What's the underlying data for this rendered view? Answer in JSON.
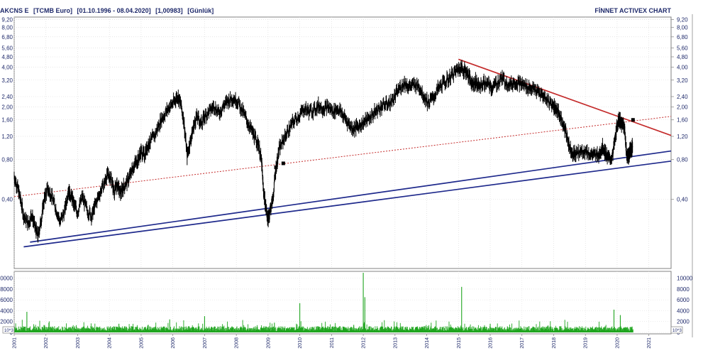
{
  "header": {
    "symbol": "AKCNS E",
    "currency": "[TCMB Euro]",
    "date_range": "[01.10.1996 - 08.04.2020]",
    "last_value": "[1,00983]",
    "period": "[Günlük]",
    "brand": "FİNNET ACTIVEX CHART"
  },
  "chart_data": [
    {
      "type": "line",
      "scale": "log",
      "x_ticks": [
        "2001",
        "2002",
        "2003",
        "2004",
        "2005",
        "2006",
        "2007",
        "2008",
        "2009",
        "2010",
        "2011",
        "2012",
        "2013",
        "2014",
        "2015",
        "2016",
        "2017",
        "2018",
        "2019",
        "2020",
        "2021"
      ],
      "y_ticks": [
        "9,20",
        "8,00",
        "6,80",
        "5,60",
        "4,80",
        "4,00",
        "3,20",
        "2,40",
        "2,00",
        "1,60",
        "1,20",
        "0,80",
        "0,40"
      ],
      "y_tick_values": [
        9.2,
        8.0,
        6.8,
        5.6,
        4.8,
        4.0,
        3.2,
        2.4,
        2.0,
        1.6,
        1.2,
        0.8,
        0.4
      ],
      "ylim": [
        0.12,
        9.6
      ],
      "xlim": [
        2001.0,
        2021.7
      ],
      "series": [
        {
          "points": [
            [
              2001.0,
              0.6
            ],
            [
              2001.1,
              0.5
            ],
            [
              2001.2,
              0.4
            ],
            [
              2001.3,
              0.3
            ],
            [
              2001.45,
              0.26
            ],
            [
              2001.55,
              0.31
            ],
            [
              2001.65,
              0.25
            ],
            [
              2001.75,
              0.21
            ],
            [
              2001.85,
              0.28
            ],
            [
              2001.95,
              0.4
            ],
            [
              2002.05,
              0.48
            ],
            [
              2002.15,
              0.44
            ],
            [
              2002.3,
              0.35
            ],
            [
              2002.45,
              0.27
            ],
            [
              2002.6,
              0.33
            ],
            [
              2002.7,
              0.47
            ],
            [
              2002.8,
              0.42
            ],
            [
              2002.9,
              0.36
            ],
            [
              2003.0,
              0.32
            ],
            [
              2003.15,
              0.42
            ],
            [
              2003.3,
              0.33
            ],
            [
              2003.45,
              0.3
            ],
            [
              2003.55,
              0.36
            ],
            [
              2003.7,
              0.45
            ],
            [
              2003.85,
              0.54
            ],
            [
              2003.95,
              0.62
            ],
            [
              2004.05,
              0.58
            ],
            [
              2004.15,
              0.46
            ],
            [
              2004.25,
              0.52
            ],
            [
              2004.35,
              0.44
            ],
            [
              2004.45,
              0.5
            ],
            [
              2004.6,
              0.56
            ],
            [
              2004.7,
              0.66
            ],
            [
              2004.8,
              0.74
            ],
            [
              2004.9,
              0.8
            ],
            [
              2005.0,
              0.92
            ],
            [
              2005.1,
              0.86
            ],
            [
              2005.2,
              1.02
            ],
            [
              2005.3,
              1.1
            ],
            [
              2005.45,
              1.25
            ],
            [
              2005.6,
              1.55
            ],
            [
              2005.75,
              1.78
            ],
            [
              2005.9,
              2.02
            ],
            [
              2006.05,
              2.2
            ],
            [
              2006.15,
              2.45
            ],
            [
              2006.25,
              2.1
            ],
            [
              2006.35,
              1.55
            ],
            [
              2006.45,
              0.85
            ],
            [
              2006.55,
              1.1
            ],
            [
              2006.65,
              1.4
            ],
            [
              2006.75,
              1.7
            ],
            [
              2006.9,
              1.5
            ],
            [
              2007.0,
              1.7
            ],
            [
              2007.15,
              1.85
            ],
            [
              2007.3,
              2.05
            ],
            [
              2007.45,
              1.8
            ],
            [
              2007.6,
              2.05
            ],
            [
              2007.75,
              2.25
            ],
            [
              2007.9,
              2.35
            ],
            [
              2008.05,
              2.2
            ],
            [
              2008.2,
              1.85
            ],
            [
              2008.35,
              1.55
            ],
            [
              2008.5,
              1.3
            ],
            [
              2008.6,
              1.15
            ],
            [
              2008.7,
              1.05
            ],
            [
              2008.8,
              0.75
            ],
            [
              2008.85,
              0.48
            ],
            [
              2008.92,
              0.36
            ],
            [
              2009.0,
              0.28
            ],
            [
              2009.05,
              0.32
            ],
            [
              2009.15,
              0.4
            ],
            [
              2009.25,
              0.7
            ],
            [
              2009.35,
              0.95
            ],
            [
              2009.5,
              1.15
            ],
            [
              2009.65,
              1.35
            ],
            [
              2009.8,
              1.55
            ],
            [
              2010.0,
              1.75
            ],
            [
              2010.15,
              1.95
            ],
            [
              2010.3,
              1.85
            ],
            [
              2010.45,
              1.9
            ],
            [
              2010.6,
              2.05
            ],
            [
              2010.75,
              1.95
            ],
            [
              2010.9,
              2.0
            ],
            [
              2011.05,
              1.85
            ],
            [
              2011.2,
              1.95
            ],
            [
              2011.35,
              1.75
            ],
            [
              2011.5,
              1.55
            ],
            [
              2011.65,
              1.38
            ],
            [
              2011.8,
              1.4
            ],
            [
              2011.95,
              1.5
            ],
            [
              2012.1,
              1.58
            ],
            [
              2012.25,
              1.7
            ],
            [
              2012.4,
              1.85
            ],
            [
              2012.55,
              2.0
            ],
            [
              2012.7,
              2.1
            ],
            [
              2012.85,
              2.15
            ],
            [
              2013.0,
              2.4
            ],
            [
              2013.15,
              2.8
            ],
            [
              2013.3,
              3.05
            ],
            [
              2013.45,
              2.85
            ],
            [
              2013.6,
              2.95
            ],
            [
              2013.75,
              2.9
            ],
            [
              2013.9,
              2.45
            ],
            [
              2014.05,
              2.15
            ],
            [
              2014.2,
              2.35
            ],
            [
              2014.35,
              2.7
            ],
            [
              2014.5,
              3.0
            ],
            [
              2014.65,
              3.2
            ],
            [
              2014.8,
              3.5
            ],
            [
              2014.95,
              3.8
            ],
            [
              2015.05,
              4.0
            ],
            [
              2015.15,
              3.85
            ],
            [
              2015.25,
              3.7
            ],
            [
              2015.35,
              3.3
            ],
            [
              2015.45,
              3.0
            ],
            [
              2015.55,
              3.1
            ],
            [
              2015.65,
              2.85
            ],
            [
              2015.8,
              3.05
            ],
            [
              2015.95,
              2.95
            ],
            [
              2016.05,
              2.8
            ],
            [
              2016.2,
              3.0
            ],
            [
              2016.35,
              3.3
            ],
            [
              2016.5,
              3.1
            ],
            [
              2016.65,
              2.95
            ],
            [
              2016.8,
              3.1
            ],
            [
              2016.95,
              3.0
            ],
            [
              2017.1,
              2.9
            ],
            [
              2017.25,
              2.8
            ],
            [
              2017.4,
              2.7
            ],
            [
              2017.55,
              2.55
            ],
            [
              2017.7,
              2.4
            ],
            [
              2017.85,
              2.2
            ],
            [
              2018.0,
              2.05
            ],
            [
              2018.1,
              1.9
            ],
            [
              2018.2,
              1.7
            ],
            [
              2018.3,
              1.5
            ],
            [
              2018.4,
              1.25
            ],
            [
              2018.5,
              1.0
            ],
            [
              2018.6,
              0.9
            ],
            [
              2018.7,
              0.88
            ],
            [
              2018.85,
              0.92
            ],
            [
              2019.0,
              0.93
            ],
            [
              2019.15,
              0.88
            ],
            [
              2019.3,
              0.85
            ],
            [
              2019.45,
              0.9
            ],
            [
              2019.55,
              1.0
            ],
            [
              2019.65,
              0.88
            ],
            [
              2019.75,
              0.8
            ],
            [
              2019.85,
              0.84
            ],
            [
              2019.95,
              1.2
            ],
            [
              2020.02,
              1.55
            ],
            [
              2020.08,
              1.62
            ],
            [
              2020.14,
              1.45
            ],
            [
              2020.2,
              1.52
            ],
            [
              2020.25,
              1.25
            ],
            [
              2020.3,
              0.88
            ],
            [
              2020.35,
              0.83
            ],
            [
              2020.4,
              0.92
            ],
            [
              2020.45,
              0.98
            ],
            [
              2020.49,
              1.01
            ]
          ],
          "color": "#000000"
        }
      ],
      "trendlines": [
        {
          "from": [
            2015.0,
            4.6
          ],
          "to": [
            2021.7,
            1.22
          ],
          "color": "#c42b2b",
          "style": "solid"
        },
        {
          "from": [
            2001.0,
            0.42
          ],
          "to": [
            2021.7,
            1.7
          ],
          "color": "#c42b2b",
          "style": "dotted"
        },
        {
          "from": [
            2001.5,
            0.19
          ],
          "to": [
            2021.7,
            0.93
          ],
          "color": "#1f2a8c",
          "style": "solid"
        },
        {
          "from": [
            2001.3,
            0.175
          ],
          "to": [
            2021.7,
            0.78
          ],
          "color": "#1f2a8c",
          "style": "solid"
        }
      ],
      "markers": [
        [
          2009.25,
          0.7
        ],
        [
          2009.48,
          0.75
        ],
        [
          2020.5,
          1.6
        ]
      ]
    },
    {
      "type": "bar",
      "y_ticks": [
        "10000",
        "8000",
        "6000",
        "4000",
        "2000",
        "0"
      ],
      "y_tick_values": [
        10000,
        8000,
        6000,
        4000,
        2000,
        0
      ],
      "ylim": [
        0,
        11000
      ],
      "unit_label": "10^3",
      "color": "#1fa51f",
      "spikes": [
        [
          2001.4,
          3800
        ],
        [
          2004.3,
          1600
        ],
        [
          2005.9,
          2400
        ],
        [
          2007.0,
          3000
        ],
        [
          2009.2,
          1800
        ],
        [
          2010.0,
          5400
        ],
        [
          2011.7,
          1400
        ],
        [
          2012.0,
          11000
        ],
        [
          2012.05,
          6500
        ],
        [
          2015.1,
          8400
        ],
        [
          2016.0,
          1600
        ],
        [
          2019.9,
          4200
        ],
        [
          2020.1,
          3200
        ]
      ]
    }
  ]
}
